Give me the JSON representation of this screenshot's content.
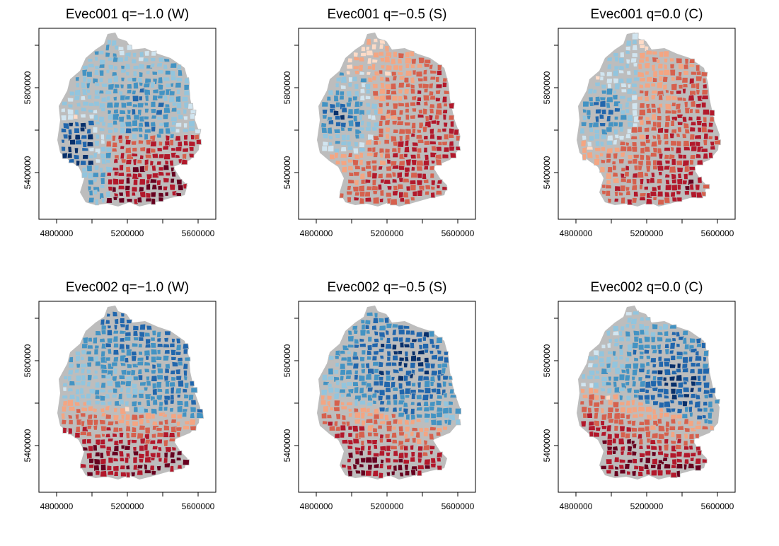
{
  "colors": {
    "blue_dark": "#08306b",
    "blue_mid": "#2166ac",
    "blue": "#4393c3",
    "blue_light": "#92c5de",
    "blue_pale": "#d1e5f0",
    "red_pale": "#fddbc7",
    "red_light": "#f4a582",
    "red": "#d6604d",
    "red_mid": "#b2182b",
    "red_dark": "#67001f",
    "border": "#bdbdbd"
  },
  "x_ticks": [
    "4800000",
    "5200000",
    "5600000"
  ],
  "y_ticks": [
    "5400000",
    "5800000"
  ],
  "panels": [
    {
      "title": "Evec001 q=−1.0 (W)",
      "pattern": "evec001_w"
    },
    {
      "title": "Evec001 q=−0.5 (S)",
      "pattern": "evec001_s"
    },
    {
      "title": "Evec001 q=0.0 (C)",
      "pattern": "evec001_c"
    },
    {
      "title": "Evec002 q=−1.0 (W)",
      "pattern": "evec002_w"
    },
    {
      "title": "Evec002 q=−0.5 (S)",
      "pattern": "evec002_s"
    },
    {
      "title": "Evec002 q=0.0 (C)",
      "pattern": "evec002_c"
    }
  ]
}
